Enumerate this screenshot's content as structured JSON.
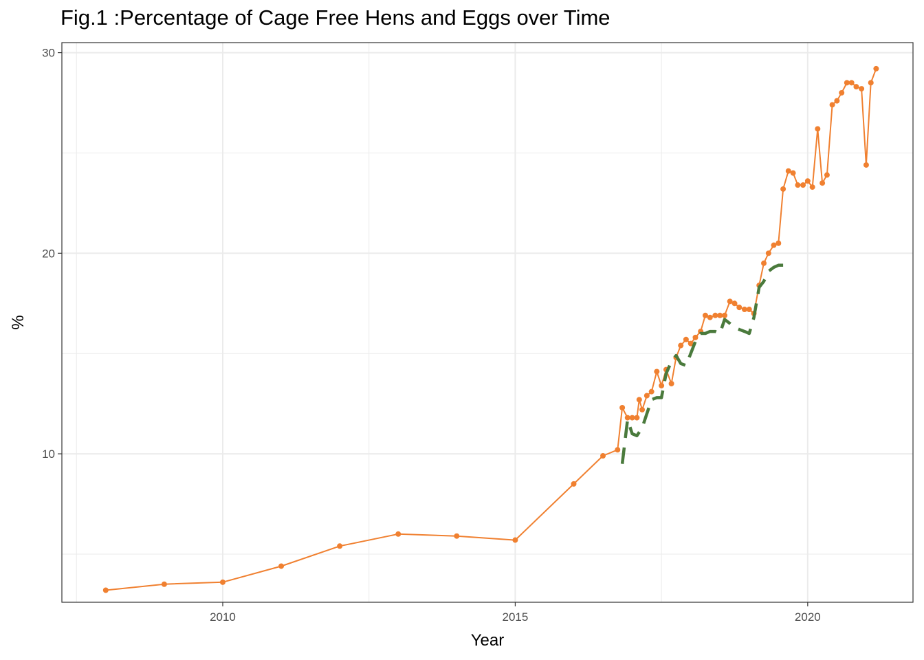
{
  "chart_data": {
    "type": "line",
    "title": "Fig.1 :Percentage of Cage Free Hens and Eggs over Time",
    "xlabel": "Year",
    "ylabel": "%",
    "xlim": [
      2007.25,
      2021.8
    ],
    "ylim": [
      2.6,
      30.5
    ],
    "x_ticks": [
      2010,
      2015,
      2020
    ],
    "y_ticks": [
      10,
      20,
      30
    ],
    "x_minor": [
      2007.5,
      2012.5,
      2017.5
    ],
    "y_minor": [
      5,
      15,
      25
    ],
    "grid": true,
    "legend": "none",
    "colors": {
      "orange_series": "#f08030",
      "green_series": "#4a7a3c",
      "grid": "#ebebeb",
      "panel_border": "#333333"
    },
    "series": [
      {
        "style": "line-points",
        "color": "#f08030",
        "x": [
          2008.0,
          2009.0,
          2010.0,
          2011.0,
          2012.0,
          2013.0,
          2014.0,
          2015.0,
          2016.0,
          2016.5,
          2016.75,
          2016.83,
          2016.92,
          2017.0,
          2017.08,
          2017.12,
          2017.17,
          2017.25,
          2017.33,
          2017.42,
          2017.5,
          2017.58,
          2017.67,
          2017.75,
          2017.83,
          2017.92,
          2018.0,
          2018.08,
          2018.17,
          2018.25,
          2018.33,
          2018.42,
          2018.5,
          2018.58,
          2018.67,
          2018.75,
          2018.83,
          2018.92,
          2019.0,
          2019.08,
          2019.17,
          2019.25,
          2019.33,
          2019.42,
          2019.5,
          2019.58,
          2019.67,
          2019.75,
          2019.83,
          2019.92,
          2020.0,
          2020.08,
          2020.17,
          2020.25,
          2020.33,
          2020.42,
          2020.5,
          2020.58,
          2020.67,
          2020.75,
          2020.83,
          2020.92,
          2021.0,
          2021.08,
          2021.17
        ],
        "y": [
          3.2,
          3.5,
          3.6,
          4.4,
          5.4,
          6.0,
          5.9,
          5.7,
          8.5,
          9.9,
          10.2,
          12.3,
          11.8,
          11.8,
          11.8,
          12.7,
          12.2,
          12.9,
          13.1,
          14.1,
          13.4,
          14.2,
          13.5,
          14.8,
          15.4,
          15.7,
          15.5,
          15.8,
          16.1,
          16.9,
          16.8,
          16.9,
          16.9,
          16.9,
          17.6,
          17.5,
          17.3,
          17.2,
          17.2,
          17.0,
          18.4,
          19.5,
          20.0,
          20.4,
          20.5,
          23.2,
          24.1,
          24.0,
          23.4,
          23.4,
          23.6,
          23.3,
          26.2,
          23.5,
          23.9,
          27.4,
          27.6,
          28.0,
          28.5,
          28.5,
          28.3,
          28.2,
          24.4,
          28.5,
          29.2
        ]
      },
      {
        "style": "dashed",
        "color": "#4a7a3c",
        "x": [
          2016.83,
          2016.92,
          2017.0,
          2017.08,
          2017.17,
          2017.25,
          2017.33,
          2017.42,
          2017.5,
          2017.58,
          2017.67,
          2017.75,
          2017.83,
          2017.92,
          2018.0,
          2018.08,
          2018.17,
          2018.25,
          2018.33,
          2018.42,
          2018.5,
          2018.58,
          2018.67,
          2018.75,
          2018.83,
          2018.92,
          2019.0,
          2019.08,
          2019.17,
          2019.25,
          2019.33,
          2019.42,
          2019.5,
          2019.58
        ],
        "y": [
          9.5,
          11.7,
          11.0,
          10.9,
          11.3,
          12.0,
          12.7,
          12.8,
          12.8,
          14.0,
          14.6,
          14.9,
          14.5,
          14.4,
          15.0,
          15.6,
          16.0,
          16.0,
          16.1,
          16.1,
          16.0,
          16.7,
          16.5,
          16.3,
          16.2,
          16.1,
          16.0,
          16.8,
          18.3,
          18.6,
          19.1,
          19.3,
          19.4,
          19.4
        ]
      }
    ]
  }
}
